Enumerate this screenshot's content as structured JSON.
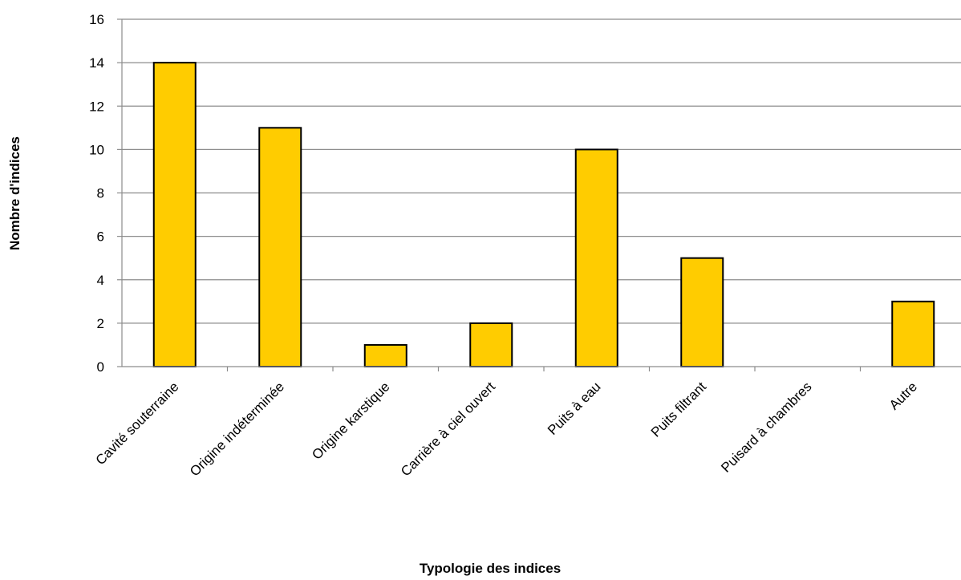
{
  "chart_data": {
    "type": "bar",
    "title": "",
    "xlabel": "Typologie des indices",
    "ylabel": "Nombre d'indices",
    "categories": [
      "Cavité souterraine",
      "Origine indéterminée",
      "Origine karstique",
      "Carrière à ciel ouvert",
      "Puits à eau",
      "Puits filtrant",
      "Puisard à chambres",
      "Autre"
    ],
    "values": [
      14,
      11,
      1,
      2,
      10,
      5,
      0,
      3
    ],
    "ylim": [
      0,
      16
    ],
    "yticks": [
      0,
      2,
      4,
      6,
      8,
      10,
      12,
      14,
      16
    ],
    "grid": true,
    "legend": "none",
    "colors": {
      "bar": "#FFCC00",
      "bar_border": "#000000",
      "grid": "#8C8C8C"
    }
  }
}
